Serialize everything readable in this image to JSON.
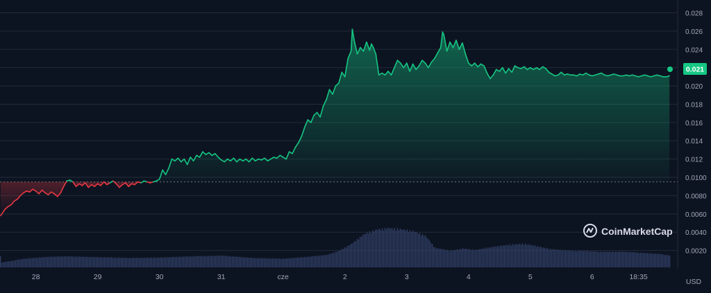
{
  "currency": "USD",
  "brand": "CoinMarketCap",
  "current_price_label": "0.021",
  "colors": {
    "background": "#0d1421",
    "grid": "#222a3a",
    "axis_text": "#a1a7bb",
    "up": "#16c784",
    "down": "#ea3943",
    "volume": "#3b4a78",
    "baseline": "#8a8f9c",
    "badge_text": "#ffffff"
  },
  "chart_data": {
    "type": "area",
    "y_ticks": [
      "0.0020",
      "0.0040",
      "0.0060",
      "0.0080",
      "0.0100",
      "0.012",
      "0.014",
      "0.016",
      "0.018",
      "0.020",
      "0.022",
      "0.024",
      "0.026",
      "0.028"
    ],
    "x_ticks": [
      {
        "label": "28",
        "x": 1.5
      },
      {
        "label": "29",
        "x": 2.5
      },
      {
        "label": "30",
        "x": 3.5
      },
      {
        "label": "31",
        "x": 4.5
      },
      {
        "label": "cze",
        "x": 5.5
      },
      {
        "label": "2",
        "x": 6.5
      },
      {
        "label": "3",
        "x": 7.5
      },
      {
        "label": "4",
        "x": 8.5
      },
      {
        "label": "5",
        "x": 9.5
      },
      {
        "label": "6",
        "x": 10.5
      },
      {
        "label": "18:35",
        "x": 11.25
      }
    ],
    "x_range": [
      0.92,
      11.76
    ],
    "ylim": [
      0,
      0.0294
    ],
    "baseline_value": 0.0095,
    "series": [
      {
        "points": [
          [
            0.93,
            0.0058
          ],
          [
            1.0,
            0.0065
          ],
          [
            1.05,
            0.0068
          ],
          [
            1.1,
            0.007
          ],
          [
            1.15,
            0.0074
          ],
          [
            1.2,
            0.0076
          ],
          [
            1.25,
            0.008
          ],
          [
            1.3,
            0.0083
          ],
          [
            1.35,
            0.0085
          ],
          [
            1.4,
            0.0084
          ],
          [
            1.45,
            0.0087
          ],
          [
            1.5,
            0.0085
          ],
          [
            1.55,
            0.0082
          ],
          [
            1.6,
            0.0086
          ],
          [
            1.65,
            0.0083
          ],
          [
            1.7,
            0.0081
          ],
          [
            1.75,
            0.0084
          ],
          [
            1.8,
            0.0082
          ],
          [
            1.85,
            0.0079
          ],
          [
            1.9,
            0.0083
          ],
          [
            1.95,
            0.009
          ],
          [
            2.0,
            0.0096
          ],
          [
            2.05,
            0.0097
          ],
          [
            2.1,
            0.0095
          ],
          [
            2.15,
            0.009
          ],
          [
            2.2,
            0.0093
          ],
          [
            2.25,
            0.0091
          ],
          [
            2.3,
            0.0094
          ],
          [
            2.35,
            0.0089
          ],
          [
            2.4,
            0.0092
          ],
          [
            2.45,
            0.009
          ],
          [
            2.5,
            0.0093
          ],
          [
            2.55,
            0.0091
          ],
          [
            2.6,
            0.0095
          ],
          [
            2.65,
            0.0092
          ],
          [
            2.7,
            0.0094
          ],
          [
            2.75,
            0.0096
          ],
          [
            2.8,
            0.0093
          ],
          [
            2.85,
            0.0089
          ],
          [
            2.9,
            0.0092
          ],
          [
            2.95,
            0.0094
          ],
          [
            3.0,
            0.009
          ],
          [
            3.05,
            0.0093
          ],
          [
            3.1,
            0.0092
          ],
          [
            3.15,
            0.0095
          ],
          [
            3.2,
            0.0094
          ],
          [
            3.25,
            0.0096
          ],
          [
            3.3,
            0.0095
          ],
          [
            3.35,
            0.0094
          ],
          [
            3.4,
            0.0095
          ],
          [
            3.45,
            0.0096
          ],
          [
            3.5,
            0.0098
          ],
          [
            3.55,
            0.0108
          ],
          [
            3.6,
            0.0103
          ],
          [
            3.65,
            0.011
          ],
          [
            3.7,
            0.012
          ],
          [
            3.75,
            0.0118
          ],
          [
            3.8,
            0.0121
          ],
          [
            3.85,
            0.0117
          ],
          [
            3.9,
            0.012
          ],
          [
            3.95,
            0.0114
          ],
          [
            4.0,
            0.0122
          ],
          [
            4.05,
            0.0118
          ],
          [
            4.1,
            0.0124
          ],
          [
            4.15,
            0.0122
          ],
          [
            4.2,
            0.0128
          ],
          [
            4.25,
            0.0125
          ],
          [
            4.3,
            0.0127
          ],
          [
            4.35,
            0.0124
          ],
          [
            4.4,
            0.0126
          ],
          [
            4.45,
            0.0122
          ],
          [
            4.5,
            0.0119
          ],
          [
            4.55,
            0.0117
          ],
          [
            4.6,
            0.012
          ],
          [
            4.65,
            0.0118
          ],
          [
            4.7,
            0.0121
          ],
          [
            4.75,
            0.0117
          ],
          [
            4.8,
            0.012
          ],
          [
            4.85,
            0.0118
          ],
          [
            4.9,
            0.012
          ],
          [
            4.95,
            0.0117
          ],
          [
            5.0,
            0.0121
          ],
          [
            5.05,
            0.0118
          ],
          [
            5.1,
            0.012
          ],
          [
            5.15,
            0.0119
          ],
          [
            5.2,
            0.0121
          ],
          [
            5.25,
            0.0118
          ],
          [
            5.3,
            0.012
          ],
          [
            5.35,
            0.0122
          ],
          [
            5.4,
            0.0121
          ],
          [
            5.45,
            0.0124
          ],
          [
            5.5,
            0.0122
          ],
          [
            5.55,
            0.012
          ],
          [
            5.6,
            0.0128
          ],
          [
            5.65,
            0.0126
          ],
          [
            5.7,
            0.0133
          ],
          [
            5.75,
            0.0138
          ],
          [
            5.8,
            0.0145
          ],
          [
            5.85,
            0.0155
          ],
          [
            5.9,
            0.0163
          ],
          [
            5.95,
            0.016
          ],
          [
            6.0,
            0.0168
          ],
          [
            6.05,
            0.0171
          ],
          [
            6.1,
            0.0166
          ],
          [
            6.15,
            0.0178
          ],
          [
            6.2,
            0.0185
          ],
          [
            6.25,
            0.0196
          ],
          [
            6.3,
            0.0191
          ],
          [
            6.35,
            0.02
          ],
          [
            6.4,
            0.0203
          ],
          [
            6.45,
            0.0215
          ],
          [
            6.5,
            0.021
          ],
          [
            6.55,
            0.023
          ],
          [
            6.6,
            0.0238
          ],
          [
            6.62,
            0.0262
          ],
          [
            6.65,
            0.025
          ],
          [
            6.7,
            0.0235
          ],
          [
            6.75,
            0.0242
          ],
          [
            6.8,
            0.0238
          ],
          [
            6.85,
            0.0248
          ],
          [
            6.9,
            0.0239
          ],
          [
            6.93,
            0.0246
          ],
          [
            6.96,
            0.0242
          ],
          [
            7.0,
            0.0235
          ],
          [
            7.05,
            0.0212
          ],
          [
            7.1,
            0.0214
          ],
          [
            7.15,
            0.0212
          ],
          [
            7.2,
            0.0216
          ],
          [
            7.25,
            0.0212
          ],
          [
            7.3,
            0.022
          ],
          [
            7.35,
            0.0228
          ],
          [
            7.4,
            0.0225
          ],
          [
            7.45,
            0.022
          ],
          [
            7.5,
            0.0225
          ],
          [
            7.55,
            0.0216
          ],
          [
            7.6,
            0.0224
          ],
          [
            7.65,
            0.0218
          ],
          [
            7.7,
            0.0222
          ],
          [
            7.75,
            0.0228
          ],
          [
            7.8,
            0.0225
          ],
          [
            7.85,
            0.022
          ],
          [
            7.9,
            0.0226
          ],
          [
            7.95,
            0.023
          ],
          [
            8.0,
            0.0236
          ],
          [
            8.05,
            0.0242
          ],
          [
            8.08,
            0.0259
          ],
          [
            8.1,
            0.0256
          ],
          [
            8.15,
            0.0238
          ],
          [
            8.2,
            0.0248
          ],
          [
            8.25,
            0.0242
          ],
          [
            8.3,
            0.025
          ],
          [
            8.35,
            0.024
          ],
          [
            8.4,
            0.0247
          ],
          [
            8.45,
            0.0235
          ],
          [
            8.5,
            0.0225
          ],
          [
            8.55,
            0.0222
          ],
          [
            8.6,
            0.0225
          ],
          [
            8.65,
            0.0221
          ],
          [
            8.7,
            0.0224
          ],
          [
            8.75,
            0.0222
          ],
          [
            8.8,
            0.0214
          ],
          [
            8.85,
            0.0208
          ],
          [
            8.9,
            0.0212
          ],
          [
            8.95,
            0.0218
          ],
          [
            9.0,
            0.0216
          ],
          [
            9.05,
            0.022
          ],
          [
            9.1,
            0.0214
          ],
          [
            9.15,
            0.0219
          ],
          [
            9.2,
            0.0215
          ],
          [
            9.25,
            0.0222
          ],
          [
            9.3,
            0.022
          ],
          [
            9.35,
            0.0219
          ],
          [
            9.4,
            0.0221
          ],
          [
            9.45,
            0.0218
          ],
          [
            9.5,
            0.022
          ],
          [
            9.55,
            0.0218
          ],
          [
            9.6,
            0.022
          ],
          [
            9.65,
            0.0218
          ],
          [
            9.7,
            0.0221
          ],
          [
            9.75,
            0.0219
          ],
          [
            9.8,
            0.0215
          ],
          [
            9.85,
            0.0213
          ],
          [
            9.9,
            0.0211
          ],
          [
            9.95,
            0.0212
          ],
          [
            10.0,
            0.0215
          ],
          [
            10.05,
            0.0212
          ],
          [
            10.1,
            0.0213
          ],
          [
            10.15,
            0.0212
          ],
          [
            10.2,
            0.0212
          ],
          [
            10.25,
            0.0211
          ],
          [
            10.3,
            0.0213
          ],
          [
            10.35,
            0.0212
          ],
          [
            10.4,
            0.0214
          ],
          [
            10.45,
            0.0212
          ],
          [
            10.5,
            0.0211
          ],
          [
            10.55,
            0.0212
          ],
          [
            10.6,
            0.0213
          ],
          [
            10.65,
            0.0214
          ],
          [
            10.7,
            0.0212
          ],
          [
            10.75,
            0.0211
          ],
          [
            10.8,
            0.0212
          ],
          [
            10.85,
            0.0213
          ],
          [
            10.9,
            0.0212
          ],
          [
            10.95,
            0.0211
          ],
          [
            11.0,
            0.0211
          ],
          [
            11.05,
            0.0212
          ],
          [
            11.1,
            0.0211
          ],
          [
            11.15,
            0.0212
          ],
          [
            11.2,
            0.0211
          ],
          [
            11.25,
            0.021
          ],
          [
            11.3,
            0.0211
          ],
          [
            11.35,
            0.0212
          ],
          [
            11.4,
            0.0211
          ],
          [
            11.45,
            0.021
          ],
          [
            11.5,
            0.0211
          ],
          [
            11.55,
            0.0212
          ],
          [
            11.6,
            0.0211
          ],
          [
            11.65,
            0.021
          ],
          [
            11.7,
            0.021
          ],
          [
            11.75,
            0.0211
          ]
        ]
      }
    ],
    "volume": {
      "points": [
        [
          0.93,
          0.12
        ],
        [
          1.3,
          0.22
        ],
        [
          1.7,
          0.27
        ],
        [
          2.0,
          0.28
        ],
        [
          2.5,
          0.26
        ],
        [
          3.0,
          0.24
        ],
        [
          3.5,
          0.25
        ],
        [
          4.0,
          0.28
        ],
        [
          4.5,
          0.3
        ],
        [
          5.0,
          0.24
        ],
        [
          5.5,
          0.22
        ],
        [
          5.9,
          0.27
        ],
        [
          6.2,
          0.32
        ],
        [
          6.4,
          0.42
        ],
        [
          6.6,
          0.6
        ],
        [
          6.8,
          0.84
        ],
        [
          7.0,
          0.96
        ],
        [
          7.2,
          1.0
        ],
        [
          7.4,
          0.97
        ],
        [
          7.6,
          0.92
        ],
        [
          7.8,
          0.8
        ],
        [
          7.95,
          0.5
        ],
        [
          8.2,
          0.42
        ],
        [
          8.4,
          0.48
        ],
        [
          8.6,
          0.44
        ],
        [
          8.8,
          0.5
        ],
        [
          9.0,
          0.55
        ],
        [
          9.2,
          0.58
        ],
        [
          9.4,
          0.6
        ],
        [
          9.6,
          0.54
        ],
        [
          9.8,
          0.47
        ],
        [
          10.0,
          0.44
        ],
        [
          10.2,
          0.42
        ],
        [
          10.4,
          0.42
        ],
        [
          10.6,
          0.4
        ],
        [
          10.8,
          0.4
        ],
        [
          11.0,
          0.4
        ],
        [
          11.2,
          0.38
        ],
        [
          11.4,
          0.36
        ],
        [
          11.6,
          0.34
        ],
        [
          11.75,
          0.3
        ]
      ]
    }
  }
}
